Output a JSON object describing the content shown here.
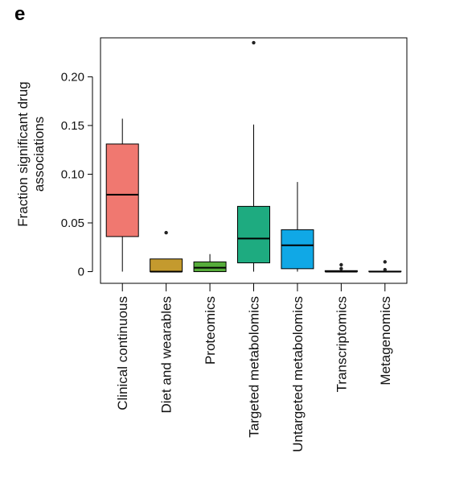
{
  "panel_label": "e",
  "chart_data": {
    "type": "box",
    "ylabel_lines": [
      "Fraction significant drug",
      "associations"
    ],
    "ylim": [
      -0.012,
      0.24
    ],
    "y_ticks": [
      0,
      0.05,
      0.1,
      0.15,
      0.2
    ],
    "y_tick_labels": [
      "0",
      "0.05",
      "0.10",
      "0.15",
      "0.20"
    ],
    "grid": false,
    "categories": [
      {
        "name": "Clinical continuous",
        "color": "#F07870",
        "whisker_low": 0,
        "q1": 0.036,
        "median": 0.079,
        "q3": 0.131,
        "whisker_high": 0.157,
        "outliers": []
      },
      {
        "name": "Diet and wearables",
        "color": "#C49A2E",
        "whisker_low": 0,
        "q1": 0,
        "median": 0,
        "q3": 0.013,
        "whisker_high": 0.013,
        "outliers": [
          0.04
        ]
      },
      {
        "name": "Proteomics",
        "color": "#56AC3A",
        "whisker_low": 0,
        "q1": 0,
        "median": 0.004,
        "q3": 0.01,
        "whisker_high": 0.018,
        "outliers": []
      },
      {
        "name": "Targeted metabolomics",
        "color": "#1EAB80",
        "whisker_low": 0,
        "q1": 0.009,
        "median": 0.034,
        "q3": 0.067,
        "whisker_high": 0.151,
        "outliers": [
          0.235
        ]
      },
      {
        "name": "Untargeted metabolomics",
        "color": "#10A8E6",
        "whisker_low": 0,
        "q1": 0.003,
        "median": 0.027,
        "q3": 0.043,
        "whisker_high": 0.092,
        "outliers": []
      },
      {
        "name": "Transcriptomics",
        "color": "#9A86C9",
        "whisker_low": 0,
        "q1": 0,
        "median": 0,
        "q3": 0.001,
        "whisker_high": 0.001,
        "outliers": [
          0.003,
          0.007
        ]
      },
      {
        "name": "Metagenomics",
        "color": "#E98AC8",
        "whisker_low": 0,
        "q1": 0,
        "median": 0,
        "q3": 0.0005,
        "whisker_high": 0.0005,
        "outliers": [
          0.002,
          0.01
        ]
      }
    ]
  }
}
